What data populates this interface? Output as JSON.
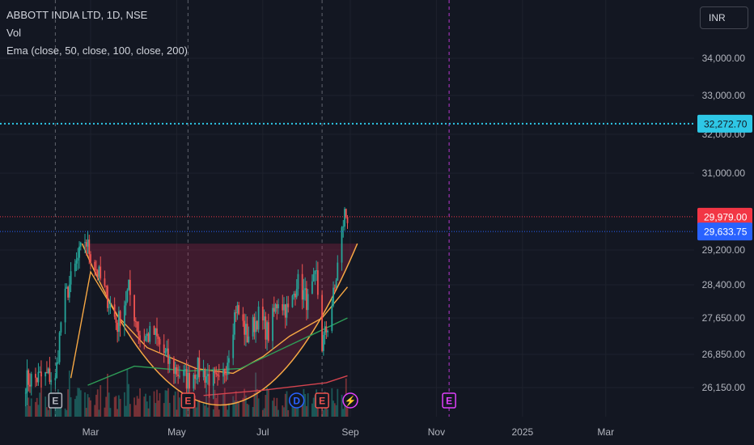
{
  "legend": {
    "symbol": "ABBOTT INDIA LTD, 1D, NSE",
    "volume": "Vol",
    "ema": "Ema (close, 50, close, 100, close, 200)"
  },
  "currency_button": "INR",
  "colors": {
    "up": "#26a69a",
    "down": "#ef5350",
    "ema50": "#f7a844",
    "ema100": "#2e9d57",
    "ema200": "#d5444f",
    "alert": "#2ec7e6",
    "last_price": "#f23645",
    "prev_close": "#2962ff",
    "earnings_event": "#e040fb"
  },
  "chart_data": {
    "type": "candlestick",
    "y_axis": {
      "ticks": [
        {
          "value": 34000,
          "label": "34,000.00"
        },
        {
          "value": 33000,
          "label": "33,000.00"
        },
        {
          "value": 32000,
          "label": "32,000.00"
        },
        {
          "value": 31000,
          "label": "31,000.00"
        },
        {
          "value": 29200,
          "label": "29,200.00"
        },
        {
          "value": 28400,
          "label": "28,400.00"
        },
        {
          "value": 27650,
          "label": "27,650.00"
        },
        {
          "value": 26850,
          "label": "26,850.00"
        },
        {
          "value": 26150,
          "label": "26,150.00"
        }
      ]
    },
    "x_axis": {
      "ticks": [
        {
          "date": "2024-03-01",
          "label": "Mar"
        },
        {
          "date": "2024-05-01",
          "label": "May"
        },
        {
          "date": "2024-07-01",
          "label": "Jul"
        },
        {
          "date": "2024-09-01",
          "label": "Sep"
        },
        {
          "date": "2024-11-01",
          "label": "Nov"
        },
        {
          "date": "2025-01-01",
          "label": "2025"
        },
        {
          "date": "2025-03-01",
          "label": "Mar"
        }
      ]
    },
    "price_lines": [
      {
        "name": "alert",
        "value": 32272.7,
        "label": "32,272.70"
      },
      {
        "name": "last_price",
        "value": 29979.0,
        "label": "29,979.00"
      },
      {
        "name": "prev_close",
        "value": 29633.75,
        "label": "29,633.75"
      }
    ],
    "markers": [
      {
        "date": "2024-02-05",
        "label": "E"
      },
      {
        "date": "2024-05-09",
        "label": "E"
      },
      {
        "date": "2024-07-25",
        "label": "D"
      },
      {
        "date": "2024-08-12",
        "label": "E"
      },
      {
        "date": "2024-09-01",
        "label": "⚡"
      },
      {
        "date": "2024-11-10",
        "label": "E"
      }
    ],
    "keypoints": [
      [
        "2024-01-15",
        26300
      ],
      [
        "2024-02-01",
        26400
      ],
      [
        "2024-02-05",
        26250
      ],
      [
        "2024-02-10",
        27900
      ],
      [
        "2024-02-18",
        28700
      ],
      [
        "2024-02-26",
        29450
      ],
      [
        "2024-03-01",
        29100
      ],
      [
        "2024-03-10",
        28350
      ],
      [
        "2024-03-20",
        27500
      ],
      [
        "2024-03-28",
        28300
      ],
      [
        "2024-04-05",
        27200
      ],
      [
        "2024-04-15",
        27300
      ],
      [
        "2024-04-25",
        26700
      ],
      [
        "2024-05-01",
        26500
      ],
      [
        "2024-05-09",
        26300
      ],
      [
        "2024-05-15",
        26550
      ],
      [
        "2024-05-25",
        26350
      ],
      [
        "2024-06-01",
        26150
      ],
      [
        "2024-06-06",
        26800
      ],
      [
        "2024-06-12",
        27900
      ],
      [
        "2024-06-20",
        27250
      ],
      [
        "2024-06-28",
        27700
      ],
      [
        "2024-07-05",
        27300
      ],
      [
        "2024-07-12",
        28100
      ],
      [
        "2024-07-20",
        27750
      ],
      [
        "2024-07-25",
        28500
      ],
      [
        "2024-08-02",
        28000
      ],
      [
        "2024-08-08",
        28600
      ],
      [
        "2024-08-12",
        27050
      ],
      [
        "2024-08-16",
        27500
      ],
      [
        "2024-08-21",
        28300
      ],
      [
        "2024-08-25",
        29400
      ],
      [
        "2024-08-28",
        30050
      ],
      [
        "2024-08-30",
        29979
      ]
    ],
    "ema50": [
      [
        "2024-02-16",
        26350
      ],
      [
        "2024-03-01",
        28700
      ],
      [
        "2024-03-20",
        27700
      ],
      [
        "2024-04-10",
        27000
      ],
      [
        "2024-04-25",
        26800
      ],
      [
        "2024-05-15",
        26550
      ],
      [
        "2024-06-10",
        26450
      ],
      [
        "2024-07-01",
        26800
      ],
      [
        "2024-07-20",
        27250
      ],
      [
        "2024-08-12",
        27650
      ],
      [
        "2024-08-30",
        28350
      ]
    ],
    "ema100": [
      [
        "2024-02-28",
        26200
      ],
      [
        "2024-04-01",
        26600
      ],
      [
        "2024-05-10",
        26500
      ],
      [
        "2024-06-15",
        26550
      ],
      [
        "2024-07-20",
        27050
      ],
      [
        "2024-08-30",
        27650
      ]
    ],
    "ema200": [
      [
        "2024-05-20",
        26000
      ],
      [
        "2024-07-01",
        26100
      ],
      [
        "2024-08-15",
        26250
      ],
      [
        "2024-08-30",
        26400
      ]
    ],
    "cup_pattern": {
      "left_rim": [
        "2024-02-24",
        29350
      ],
      "bottom": [
        "2024-06-01",
        25900
      ],
      "right_rim": [
        "2024-09-06",
        29350
      ]
    },
    "event_lines": [
      "2024-02-05",
      "2024-05-09",
      "2024-08-12",
      "2024-11-10"
    ],
    "alert_event_line": "2024-11-10"
  }
}
